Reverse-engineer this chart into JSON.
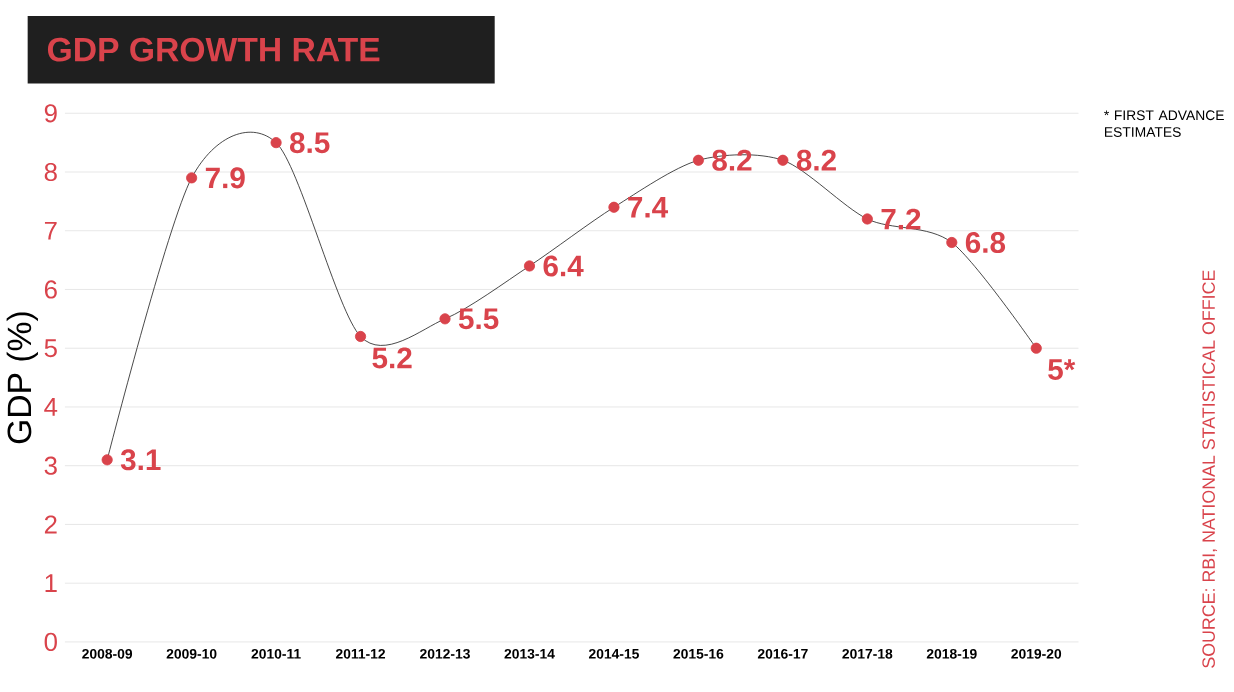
{
  "chart_data": {
    "type": "line",
    "title": "GDP GROWTH RATE",
    "ylabel": "GDP (%)",
    "categories": [
      "2008-09",
      "2009-10",
      "2010-11",
      "2011-12",
      "2012-13",
      "2013-14",
      "2014-15",
      "2015-16",
      "2016-17",
      "2017-18",
      "2018-19",
      "2019-20"
    ],
    "series": [
      {
        "color": "#1a1a1a",
        "colors": [
          "#d9434b",
          "#d9434b",
          "#d9434b",
          "#d9434b",
          "#d9434b",
          "#d9434b",
          "#d9434b",
          "#d9434b",
          "#d9434b",
          "#d9434b",
          "#d9434b",
          "#d9434b"
        ],
        "values": [
          3.1,
          7.9,
          8.5,
          5.2,
          5.5,
          6.4,
          7.4,
          8.2,
          8.2,
          7.2,
          6.8,
          5
        ]
      }
    ],
    "value_labels": [
      "3.1",
      "7.9",
      "8.5",
      "5.2",
      "5.5",
      "6.4",
      "7.4",
      "8.2",
      "8.2",
      "7.2",
      "6.8",
      "5*"
    ],
    "ylim": [
      0,
      9
    ],
    "yticks": [
      0,
      1,
      2,
      3,
      4,
      5,
      6,
      7,
      8,
      9
    ],
    "grid": "y",
    "marker": "circle",
    "line_style": "solid",
    "annotations": [
      "* FIRST ADVANCE ESTIMATES",
      "SOURCE: RBI, NATIONAL STATISTICAL OFFICE"
    ]
  }
}
